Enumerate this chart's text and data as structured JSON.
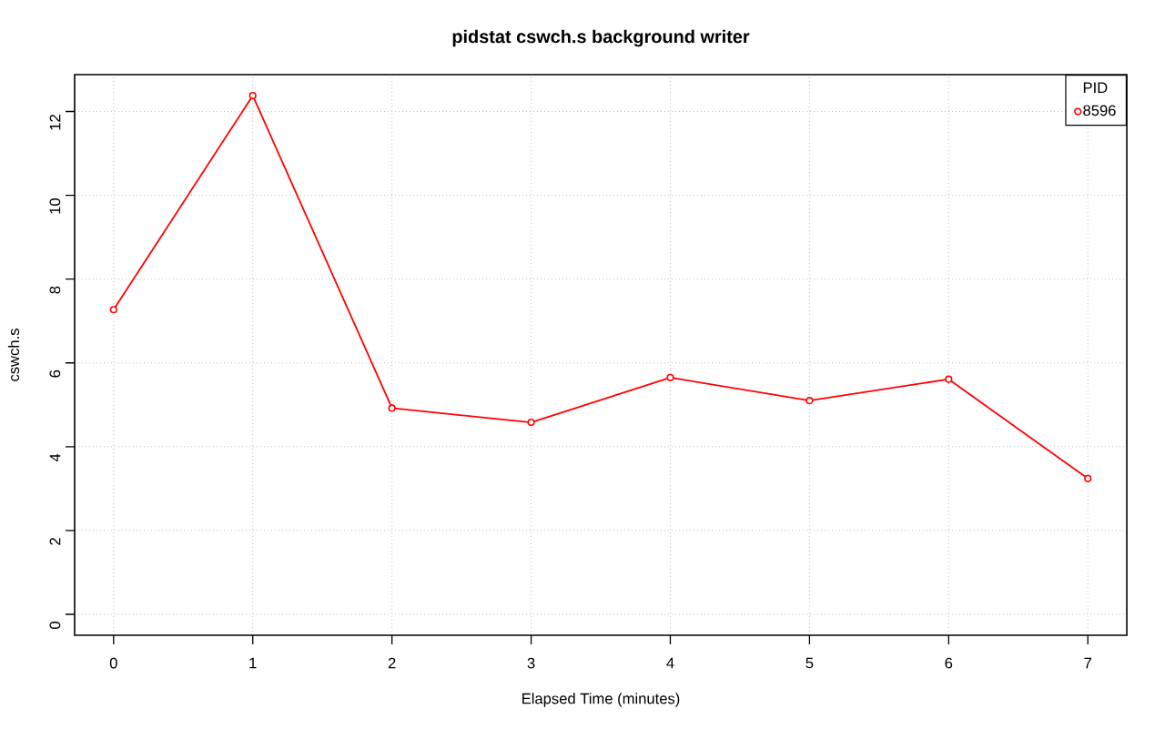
{
  "chart_data": {
    "type": "line",
    "title": "pidstat cswch.s background writer",
    "xlabel": "Elapsed Time (minutes)",
    "ylabel": "cswch.s",
    "legend_title": "PID",
    "x": [
      0,
      1,
      2,
      3,
      4,
      5,
      6,
      7
    ],
    "series": [
      {
        "name": "8596",
        "color": "#ff0000",
        "values": [
          7.27,
          12.38,
          4.92,
          4.58,
          5.65,
          5.1,
          5.61,
          3.24
        ]
      }
    ],
    "xlim": [
      -0.28,
      7.28
    ],
    "ylim": [
      -0.5,
      12.88
    ],
    "xticks": [
      0,
      1,
      2,
      3,
      4,
      5,
      6,
      7
    ],
    "yticks": [
      0,
      2,
      4,
      6,
      8,
      10,
      12
    ],
    "grid": true,
    "legend": "top right",
    "marker": "circle",
    "line_style": "solid"
  }
}
